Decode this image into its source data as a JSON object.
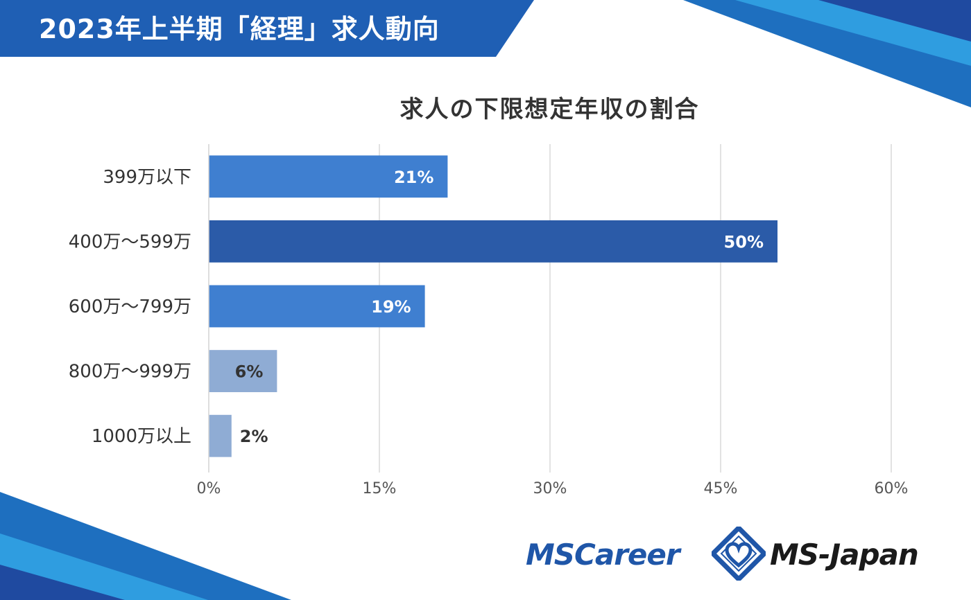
{
  "header": {
    "title": "2023年上半期「経理」求人動向"
  },
  "colors": {
    "header_bg": "#1f5fb4",
    "bar_dark": "#2b5ba8",
    "bar_mid": "#3f7fd0",
    "bar_light": "#8facd4",
    "grid": "#d9d9d9",
    "deco_blue": "#1e6fbf",
    "deco_light": "#2f9de0"
  },
  "logos": {
    "ms_career": "MSCareer",
    "ms_japan": "MS-Japan",
    "mark_icon": "ms-japan-diamond-heart-icon"
  },
  "chart_data": {
    "type": "bar",
    "orientation": "horizontal",
    "title": "求人の下限想定年収の割合",
    "categories": [
      "399万以下",
      "400万～599万",
      "600万～799万",
      "800万～999万",
      "1000万以上"
    ],
    "values": [
      21,
      50,
      19,
      6,
      2
    ],
    "data_labels": [
      "21%",
      "50%",
      "19%",
      "6%",
      "2%"
    ],
    "bar_colors": [
      "#3f7fd0",
      "#2b5ba8",
      "#3f7fd0",
      "#8facd4",
      "#8facd4"
    ],
    "xlim": [
      0,
      60
    ],
    "x_ticks": [
      0,
      15,
      30,
      45,
      60
    ],
    "x_tick_labels": [
      "0%",
      "15%",
      "30%",
      "45%",
      "60%"
    ],
    "grid": true,
    "legend": "none"
  }
}
